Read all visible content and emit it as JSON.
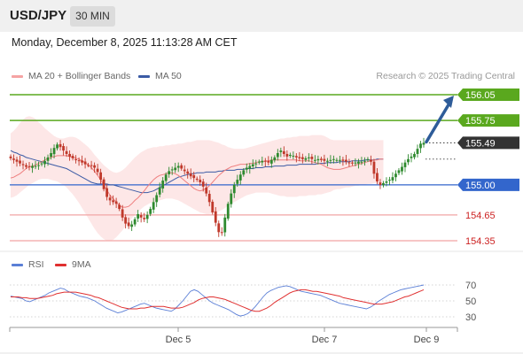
{
  "header": {
    "pair": "USD/JPY",
    "timeframe": "30 MIN"
  },
  "datetime": "Monday, December 8, 2025 11:13:28 AM CET",
  "legend": {
    "ma20_bb": "MA 20 + Bollinger Bands",
    "ma50": "MA 50",
    "rsi": "RSI",
    "rsi_ma": "9MA"
  },
  "credit": "Research © 2025 Trading Central",
  "colors": {
    "bollinger_fill": "#fde3e3",
    "ma20": "#ef7f7f",
    "ma50": "#3b5ba5",
    "candle_up": "#2f8a2f",
    "candle_down": "#c0392b",
    "resistance": "#5aa81e",
    "pivot": "#3366cc",
    "support": "#f2a5a5",
    "support_text": "#cc2222",
    "arrow": "#2e5c99",
    "current_price_tag": "#333333",
    "rsi_line": "#5b7fd6",
    "rsi_ma_line": "#e03030"
  },
  "chart_data": [
    {
      "type": "candlestick",
      "title": "USD/JPY 30 MIN",
      "ylim": [
        154.3,
        156.2
      ],
      "x_tick_labels": [
        "Dec 5",
        "Dec 7",
        "Dec 9"
      ],
      "levels": [
        {
          "value": 156.05,
          "label": "156.05",
          "kind": "resistance"
        },
        {
          "value": 155.75,
          "label": "155.75",
          "kind": "resistance"
        },
        {
          "value": 155.49,
          "label": "155.49",
          "kind": "current"
        },
        {
          "value": 155.0,
          "label": "155.00",
          "kind": "pivot"
        },
        {
          "value": 154.65,
          "label": "154.65",
          "kind": "support"
        },
        {
          "value": 154.35,
          "label": "154.35",
          "kind": "support"
        }
      ],
      "close": [
        155.31,
        155.29,
        155.27,
        155.25,
        155.23,
        155.21,
        155.21,
        155.22,
        155.22,
        155.23,
        155.25,
        155.28,
        155.32,
        155.37,
        155.43,
        155.47,
        155.44,
        155.4,
        155.36,
        155.33,
        155.31,
        155.29,
        155.28,
        155.26,
        155.24,
        155.23,
        155.22,
        155.2,
        155.15,
        155.06,
        154.95,
        154.86,
        154.82,
        154.8,
        154.78,
        154.72,
        154.62,
        154.55,
        154.52,
        154.54,
        154.6,
        154.66,
        154.62,
        154.6,
        154.65,
        154.72,
        154.8,
        154.88,
        154.97,
        155.05,
        155.12,
        155.16,
        155.18,
        155.2,
        155.22,
        155.19,
        155.16,
        155.13,
        155.1,
        155.08,
        155.06,
        155.03,
        154.98,
        154.9,
        154.8,
        154.68,
        154.56,
        154.45,
        154.44,
        154.62,
        154.78,
        154.9,
        155.0,
        155.06,
        155.12,
        155.17,
        155.2,
        155.22,
        155.24,
        155.25,
        155.27,
        155.28,
        155.27,
        155.26,
        155.29,
        155.32,
        155.37,
        155.4,
        155.36,
        155.33,
        155.35,
        155.34,
        155.32,
        155.31,
        155.3,
        155.31,
        155.32,
        155.3,
        155.29,
        155.3,
        155.29,
        155.28,
        155.28,
        155.29,
        155.3,
        155.29,
        155.29,
        155.28,
        155.27,
        155.26,
        155.25,
        155.26,
        155.27,
        155.27,
        155.28,
        155.3,
        155.27,
        155.13,
        155.04,
        155.0,
        155.02,
        155.04,
        155.06,
        155.09,
        155.13,
        155.17,
        155.21,
        155.26,
        155.3,
        155.33,
        155.36,
        155.42,
        155.48,
        155.49
      ],
      "ma20": [
        155.08,
        155.09,
        155.11,
        155.13,
        155.16,
        155.19,
        155.21,
        155.22,
        155.23,
        155.25,
        155.27,
        155.29,
        155.31,
        155.32,
        155.33,
        155.34,
        155.34,
        155.34,
        155.34,
        155.33,
        155.32,
        155.31,
        155.3,
        155.28,
        155.26,
        155.23,
        155.2,
        155.16,
        155.11,
        155.06,
        155.0,
        154.94,
        154.88,
        154.84,
        154.8,
        154.76,
        154.74,
        154.74,
        154.75,
        154.78,
        154.82,
        154.85,
        154.89,
        154.93,
        154.98,
        155.02,
        155.06,
        155.09,
        155.11,
        155.12,
        155.13,
        155.14,
        155.14,
        155.13,
        155.11,
        155.08,
        155.05,
        155.02,
        154.99,
        154.96,
        154.94,
        154.93,
        154.94,
        154.96,
        154.99,
        155.03,
        155.07,
        155.11,
        155.14,
        155.17,
        155.19,
        155.21,
        155.22,
        155.23,
        155.24,
        155.24,
        155.24,
        155.25,
        155.25,
        155.26,
        155.27,
        155.27,
        155.28,
        155.28,
        155.29,
        155.29,
        155.29,
        155.29,
        155.29,
        155.29,
        155.29,
        155.29,
        155.29,
        155.28,
        155.28,
        155.28,
        155.28,
        155.27,
        155.26,
        155.25,
        155.24,
        155.22,
        155.2,
        155.19,
        155.18,
        155.18,
        155.18,
        155.19,
        155.2,
        155.21,
        155.22,
        155.23,
        155.24,
        155.25,
        155.26,
        155.27,
        155.28,
        155.29,
        155.29,
        155.3,
        155.3
      ],
      "ma50": [
        155.4,
        155.38,
        155.37,
        155.35,
        155.34,
        155.32,
        155.31,
        155.3,
        155.29,
        155.28,
        155.27,
        155.26,
        155.25,
        155.24,
        155.23,
        155.22,
        155.21,
        155.2,
        155.19,
        155.17,
        155.15,
        155.13,
        155.11,
        155.09,
        155.07,
        155.05,
        155.03,
        155.02,
        155.01,
        155.01,
        155.01,
        155.01,
        155.0,
        155.0,
        154.99,
        154.98,
        154.97,
        154.96,
        154.95,
        154.94,
        154.93,
        154.92,
        154.91,
        154.91,
        154.91,
        154.92,
        154.93,
        154.95,
        154.97,
        154.99,
        155.01,
        155.03,
        155.05,
        155.07,
        155.09,
        155.1,
        155.11,
        155.12,
        155.13,
        155.13,
        155.14,
        155.14,
        155.14,
        155.15,
        155.15,
        155.15,
        155.15,
        155.16,
        155.16,
        155.17,
        155.17,
        155.17,
        155.17,
        155.18,
        155.18,
        155.18,
        155.19,
        155.19,
        155.19,
        155.2,
        155.2,
        155.2,
        155.21,
        155.21,
        155.21,
        155.22,
        155.22,
        155.22,
        155.22,
        155.23,
        155.23,
        155.23,
        155.23,
        155.24,
        155.24,
        155.24,
        155.24,
        155.24,
        155.24,
        155.25,
        155.25,
        155.25,
        155.26,
        155.26,
        155.26,
        155.26,
        155.27,
        155.27,
        155.27,
        155.27,
        155.28,
        155.28,
        155.28,
        155.28,
        155.29,
        155.29,
        155.29,
        155.29,
        155.3,
        155.3,
        155.3
      ],
      "bollinger_upper": [
        155.6,
        155.63,
        155.67,
        155.72,
        155.76,
        155.79,
        155.8,
        155.79,
        155.77,
        155.73,
        155.7,
        155.66,
        155.63,
        155.6,
        155.57,
        155.55,
        155.54,
        155.54,
        155.55,
        155.56,
        155.56,
        155.55,
        155.53,
        155.5,
        155.47,
        155.44,
        155.4,
        155.35,
        155.31,
        155.27,
        155.23,
        155.2,
        155.17,
        155.15,
        155.14,
        155.15,
        155.17,
        155.2,
        155.24,
        155.28,
        155.32,
        155.35,
        155.38,
        155.4,
        155.42,
        155.43,
        155.44,
        155.44,
        155.45,
        155.45,
        155.46,
        155.46,
        155.47,
        155.47,
        155.48,
        155.48,
        155.49,
        155.5,
        155.5,
        155.51,
        155.52,
        155.52,
        155.52,
        155.52,
        155.52,
        155.51,
        155.5,
        155.49,
        155.47,
        155.46,
        155.44,
        155.43,
        155.42,
        155.42,
        155.42,
        155.42,
        155.43,
        155.44,
        155.45,
        155.46,
        155.47,
        155.48,
        155.49,
        155.5,
        155.51,
        155.52,
        155.53,
        155.54,
        155.54,
        155.55,
        155.55,
        155.56,
        155.56,
        155.57,
        155.57,
        155.57,
        155.57,
        155.58,
        155.58,
        155.58,
        155.58,
        155.57,
        155.55,
        155.53,
        155.52,
        155.52,
        155.52,
        155.52,
        155.52,
        155.52,
        155.52,
        155.52,
        155.52,
        155.52,
        155.52,
        155.52,
        155.52,
        155.52,
        155.52,
        155.52,
        155.52
      ],
      "bollinger_lower": [
        154.85,
        154.86,
        154.88,
        154.91,
        154.94,
        154.97,
        155.0,
        155.02,
        155.04,
        155.06,
        155.07,
        155.07,
        155.07,
        155.06,
        155.05,
        155.04,
        155.02,
        155.0,
        154.97,
        154.93,
        154.89,
        154.84,
        154.79,
        154.73,
        154.67,
        154.61,
        154.55,
        154.49,
        154.44,
        154.4,
        154.37,
        154.35,
        154.35,
        154.36,
        154.39,
        154.43,
        154.47,
        154.52,
        154.56,
        154.61,
        154.65,
        154.69,
        154.72,
        154.75,
        154.77,
        154.79,
        154.8,
        154.81,
        154.82,
        154.83,
        154.84,
        154.84,
        154.84,
        154.83,
        154.82,
        154.8,
        154.78,
        154.76,
        154.74,
        154.72,
        154.7,
        154.68,
        154.67,
        154.66,
        154.66,
        154.67,
        154.68,
        154.69,
        154.71,
        154.73,
        154.76,
        154.78,
        154.8,
        154.82,
        154.84,
        154.86,
        154.88,
        154.89,
        154.9,
        154.91,
        154.91,
        154.91,
        154.91,
        154.91,
        154.9,
        154.89,
        154.88,
        154.87,
        154.87,
        154.86,
        154.86,
        154.86,
        154.86,
        154.87,
        154.87,
        154.87,
        154.88,
        154.88,
        154.88,
        154.89,
        154.89,
        154.9,
        154.91,
        154.92,
        154.94,
        154.95,
        154.95,
        154.96,
        154.97,
        154.97,
        154.98,
        154.99,
        154.99,
        155.0,
        155.0,
        155.01,
        155.01,
        155.02,
        155.02,
        155.02,
        155.02
      ]
    },
    {
      "type": "line",
      "title": "RSI",
      "ylim": [
        20,
        80
      ],
      "y_ticks": [
        30,
        50,
        70
      ],
      "series": [
        {
          "name": "RSI",
          "values": [
            56,
            55,
            54,
            53,
            50,
            49,
            51,
            53,
            55,
            57,
            60,
            62,
            64,
            66,
            65,
            62,
            60,
            58,
            56,
            55,
            54,
            52,
            50,
            47,
            44,
            41,
            39,
            37,
            35,
            36,
            38,
            40,
            42,
            44,
            46,
            47,
            45,
            43,
            41,
            40,
            39,
            38,
            37,
            40,
            45,
            50,
            56,
            62,
            64,
            62,
            58,
            54,
            50,
            47,
            45,
            43,
            41,
            39,
            36,
            33,
            31,
            32,
            34,
            38,
            43,
            49,
            55,
            60,
            63,
            65,
            67,
            68,
            69,
            68,
            66,
            64,
            62,
            61,
            60,
            59,
            58,
            57,
            55,
            53,
            51,
            49,
            47,
            46,
            45,
            44,
            43,
            42,
            41,
            40,
            42,
            45,
            49,
            52,
            55,
            58,
            60,
            62,
            64,
            65,
            66,
            67,
            68,
            69,
            70
          ]
        },
        {
          "name": "9MA",
          "values": [
            55,
            55,
            55,
            54,
            54,
            53,
            53,
            53,
            54,
            55,
            56,
            57,
            59,
            60,
            61,
            61,
            61,
            61,
            60,
            59,
            58,
            57,
            55,
            54,
            52,
            50,
            48,
            46,
            44,
            42,
            41,
            40,
            40,
            40,
            41,
            41,
            42,
            43,
            43,
            43,
            43,
            42,
            41,
            41,
            41,
            42,
            44,
            46,
            48,
            51,
            53,
            54,
            55,
            55,
            54,
            53,
            52,
            50,
            48,
            46,
            44,
            42,
            40,
            38,
            37,
            37,
            39,
            41,
            44,
            48,
            51,
            54,
            57,
            60,
            62,
            63,
            64,
            64,
            63,
            62,
            62,
            61,
            60,
            59,
            58,
            57,
            56,
            54,
            53,
            52,
            51,
            50,
            49,
            48,
            47,
            46,
            46,
            46,
            47,
            48,
            49,
            51,
            53,
            55,
            56,
            58,
            60,
            62,
            64
          ]
        }
      ]
    }
  ]
}
